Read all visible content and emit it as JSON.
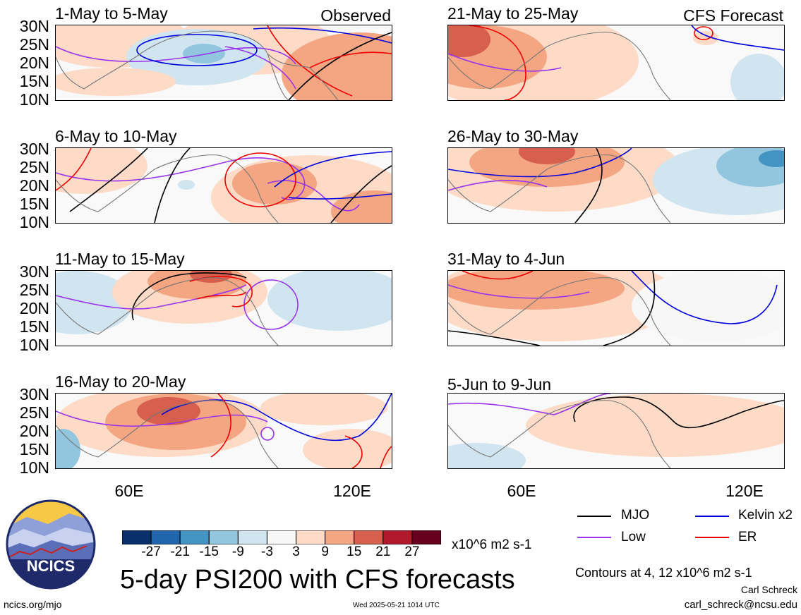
{
  "panels": {
    "left": [
      {
        "title": "1-May to 5-May",
        "tag": "Observed"
      },
      {
        "title": "6-May to 10-May",
        "tag": ""
      },
      {
        "title": "11-May to 15-May",
        "tag": ""
      },
      {
        "title": "16-May to 20-May",
        "tag": ""
      }
    ],
    "right": [
      {
        "title": "21-May to 25-May",
        "tag": "CFS Forecast"
      },
      {
        "title": "26-May to 30-May",
        "tag": ""
      },
      {
        "title": "31-May to 4-Jun",
        "tag": ""
      },
      {
        "title": "5-Jun to 9-Jun",
        "tag": ""
      }
    ]
  },
  "axes": {
    "lat_labels": [
      "30N",
      "25N",
      "20N",
      "15N",
      "10N"
    ],
    "lon_labels": [
      "60E",
      "120E"
    ]
  },
  "colorbar": {
    "labels": [
      "-27",
      "-21",
      "-15",
      "-9",
      "-3",
      "3",
      "9",
      "15",
      "21",
      "27"
    ],
    "colors": [
      "#08306b",
      "#2166ac",
      "#4393c3",
      "#92c5de",
      "#d1e5f0",
      "#f7f7f7",
      "#fddbc7",
      "#f4a582",
      "#d6604d",
      "#b2182b",
      "#67001f"
    ],
    "units": "x10^6 m2 s-1"
  },
  "legend": {
    "mjo": "MJO",
    "kelvin": "Kelvin x2",
    "low": "Low",
    "er": "ER",
    "colors": {
      "mjo": "#000000",
      "kelvin": "#0000dd",
      "low": "#9933ee",
      "er": "#ee0000"
    }
  },
  "footer": {
    "main_title": "5-day PSI200 with CFS forecasts",
    "contours": "Contours at 4, 12 x10^6 m2 s-1",
    "author": "Carl Schreck",
    "email": "carl_schreck@ncsu.edu",
    "site": "ncics.org/mjo",
    "timestamp": "Wed 2025-05-21 1014 UTC",
    "logo_text": "NCICS"
  }
}
